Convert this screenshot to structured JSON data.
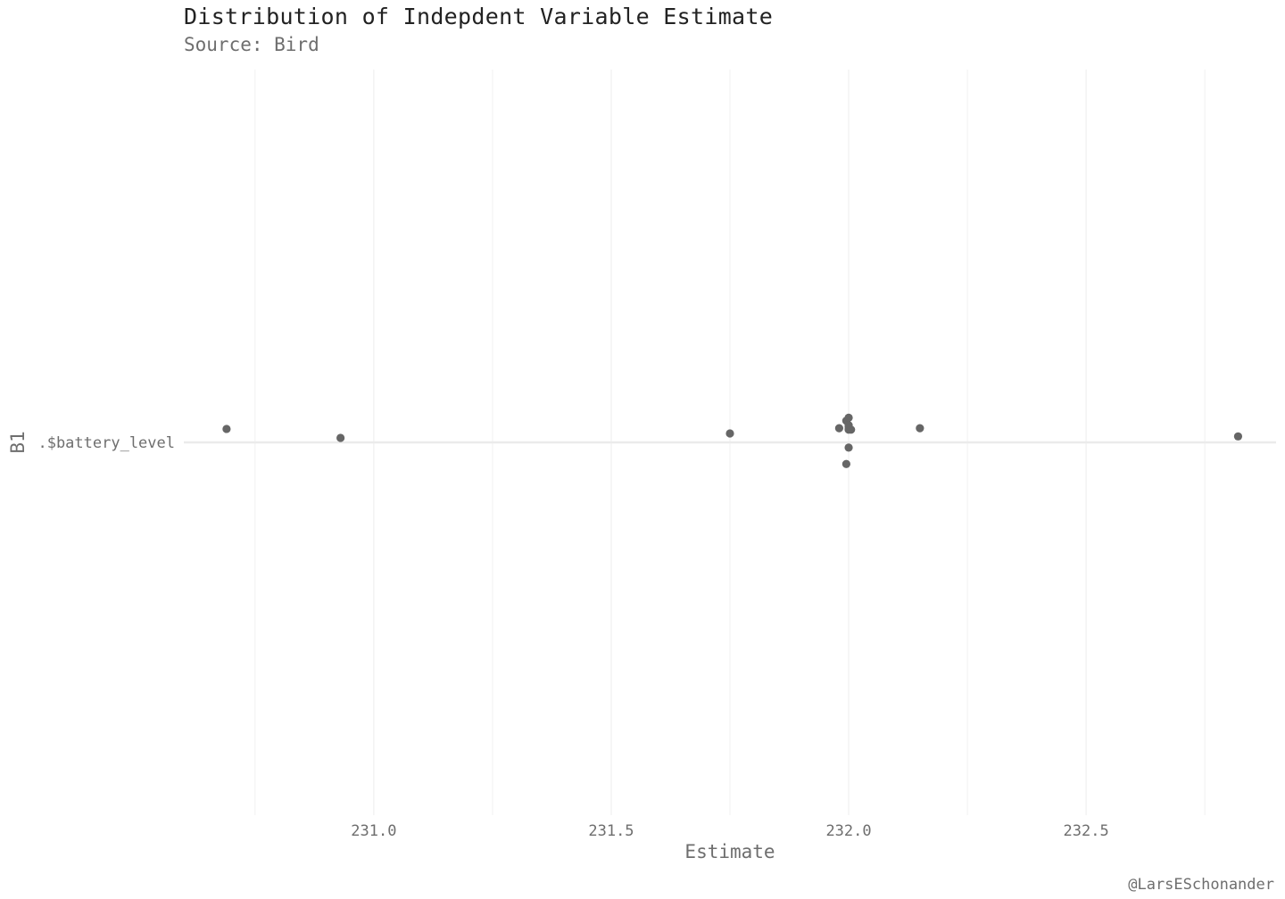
{
  "chart_data": {
    "type": "scatter",
    "title": "Distribution of Indepdent Variable Estimate",
    "subtitle": "Source: Bird",
    "xlabel": "Estimate",
    "ylabel": "B1",
    "caption": "@LarsESchonander",
    "categories": [
      ".$battery_level"
    ],
    "xlim": [
      230.6,
      232.9
    ],
    "x_ticks": [
      231.0,
      231.5,
      232.0,
      232.5
    ],
    "x_tick_labels": [
      "231.0",
      "231.5",
      "232.0",
      "232.5"
    ],
    "grid": true,
    "legend": "none",
    "colors": {
      "point": "#666666",
      "grid_major": "#ebebeb",
      "grid_minor": "#f3f3f3",
      "axis_text": "#6e6e6e",
      "title": "#222222"
    },
    "series": [
      {
        "category": ".$battery_level",
        "x": [
          230.69,
          230.93,
          231.75,
          231.98,
          231.995,
          232.0,
          232.0,
          232.0,
          232.0,
          232.0,
          232.005,
          232.0,
          231.995,
          232.15,
          232.82
        ],
        "jitter": [
          0.18,
          0.06,
          0.12,
          0.19,
          0.29,
          0.23,
          0.33,
          0.17,
          0.18,
          0.21,
          0.17,
          -0.07,
          -0.29,
          0.19,
          0.08
        ]
      }
    ]
  }
}
